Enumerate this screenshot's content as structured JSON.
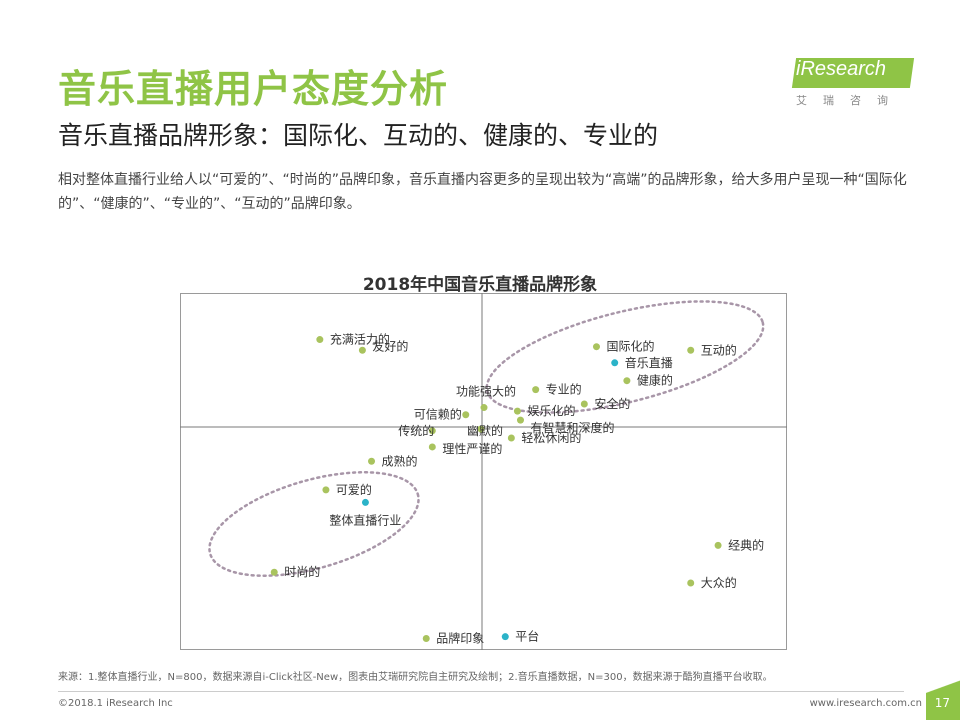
{
  "header": {
    "title": "音乐直播用户态度分析",
    "subtitle": "音乐直播品牌形象：国际化、互动的、健康的、专业的",
    "description": "相对整体直播行业给人以“可爱的”、“时尚的”品牌印象，音乐直播内容更多的呈现出较为“高端”的品牌形象，给大多用户呈现一种“国际化的”、“健康的”、“专业的”、“互动的”品牌印象。"
  },
  "logo": {
    "text": "iResearch",
    "subtext": "艾瑞咨询"
  },
  "chart_data": {
    "type": "scatter",
    "title": "2018年中国音乐直播品牌形象",
    "xlabel": "",
    "ylabel": "",
    "xlim": [
      0,
      100
    ],
    "ylim": [
      0,
      100
    ],
    "grid": false,
    "legend": [
      {
        "label": "品牌印象",
        "color": "#a9c35e"
      },
      {
        "label": "平台",
        "color": "#2bb3c8"
      }
    ],
    "colors": {
      "attribute": "#a9c35e",
      "platform": "#2bb3c8"
    },
    "series": [
      {
        "name": "品牌印象",
        "points": [
          {
            "label": "充满活力的",
            "x": 23,
            "y": 87
          },
          {
            "label": "友好的",
            "x": 30,
            "y": 84
          },
          {
            "label": "国际化的",
            "x": 68.5,
            "y": 85
          },
          {
            "label": "互动的",
            "x": 84,
            "y": 84
          },
          {
            "label": "健康的",
            "x": 73.5,
            "y": 75.5
          },
          {
            "label": "专业的",
            "x": 58.5,
            "y": 73
          },
          {
            "label": "安全的",
            "x": 66.5,
            "y": 69
          },
          {
            "label": "功能强大的",
            "x": 50,
            "y": 68
          },
          {
            "label": "娱乐化的",
            "x": 55.5,
            "y": 67
          },
          {
            "label": "可信赖的",
            "x": 47,
            "y": 66
          },
          {
            "label": "有智慧和深度的",
            "x": 56,
            "y": 64.5
          },
          {
            "label": "幽默的",
            "x": 49.5,
            "y": 62
          },
          {
            "label": "传统的",
            "x": 41.5,
            "y": 61.5
          },
          {
            "label": "轻松休闲的",
            "x": 54.5,
            "y": 59.5
          },
          {
            "label": "理性严谨的",
            "x": 41.5,
            "y": 57
          },
          {
            "label": "成熟的",
            "x": 31.5,
            "y": 53
          },
          {
            "label": "可爱的",
            "x": 24,
            "y": 45
          },
          {
            "label": "时尚的",
            "x": 15.5,
            "y": 22
          },
          {
            "label": "经典的",
            "x": 88.5,
            "y": 29.5
          },
          {
            "label": "大众的",
            "x": 84,
            "y": 19
          },
          {
            "label": "品牌印象",
            "x": 40.5,
            "y": 3.5
          }
        ]
      },
      {
        "name": "平台",
        "points": [
          {
            "label": "音乐直播",
            "x": 71.5,
            "y": 80.5
          },
          {
            "label": "整体直播行业",
            "x": 30.5,
            "y": 41.5
          },
          {
            "label": "平台",
            "x": 53.5,
            "y": 4
          }
        ]
      }
    ]
  },
  "footer": {
    "source": "来源：1.整体直播行业，N=800，数据来源自i-Click社区-New，图表由艾瑞研究院自主研究及绘制；2.音乐直播数据，N=300，数据来源于酷狗直播平台收取。",
    "copyright": "©2018.1 iResearch Inc",
    "website": "www.iresearch.com.cn",
    "page_number": "17"
  }
}
